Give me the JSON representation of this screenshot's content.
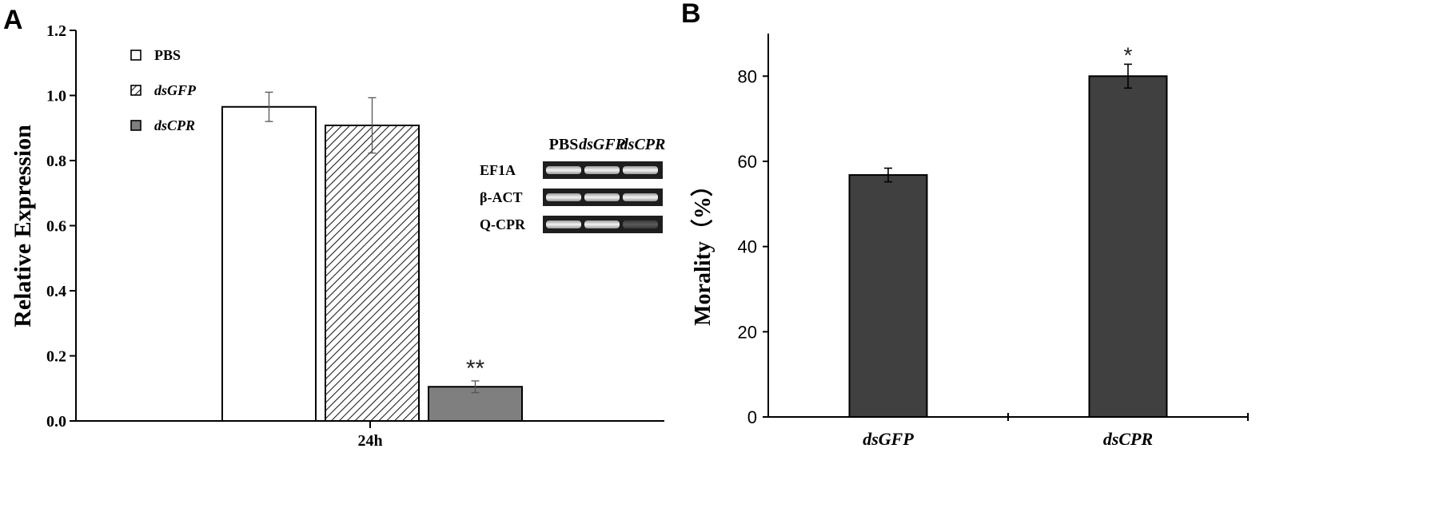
{
  "panels": [
    {
      "letter": "A",
      "chart_data": {
        "type": "bar",
        "xlabel": "24h",
        "ylabel": "Relative Expression",
        "ylim": [
          0,
          1.2
        ],
        "yticks": [
          "0.0",
          "0.2",
          "0.4",
          "0.6",
          "0.8",
          "1.0",
          "1.2"
        ],
        "yticks_values": [
          0,
          0.2,
          0.4,
          0.6,
          0.8,
          1.0,
          1.2
        ],
        "grid": false,
        "legend_position": "top-left",
        "series": [
          {
            "name": "PBS",
            "values": [
              0.965
            ],
            "error": [
              0.045
            ],
            "fill": "#ffffff",
            "pattern": "none",
            "significance": ""
          },
          {
            "name": "dsGFP",
            "values": [
              0.908
            ],
            "error": [
              0.085
            ],
            "fill": "#ffffff",
            "pattern": "hatch",
            "significance": ""
          },
          {
            "name": "dsCPR",
            "values": [
              0.105
            ],
            "error": [
              0.018
            ],
            "fill": "#7f7f7f",
            "pattern": "none",
            "significance": "**"
          }
        ]
      },
      "gel_inset": {
        "lanes": [
          "PBS",
          "dsGFP",
          "dsCPR"
        ],
        "rows": [
          {
            "label": "EF1A",
            "band_intensity": [
              1.0,
              1.0,
              1.0
            ]
          },
          {
            "label": "β-ACT",
            "band_intensity": [
              1.0,
              1.0,
              1.0
            ]
          },
          {
            "label": "Q-CPR",
            "band_intensity": [
              1.0,
              1.0,
              0.15
            ]
          }
        ]
      }
    },
    {
      "letter": "B",
      "chart_data": {
        "type": "bar",
        "categories": [
          "dsGFP",
          "dsCPR"
        ],
        "values": [
          56.8,
          80.0
        ],
        "error": [
          1.6,
          2.8
        ],
        "significance": [
          "",
          "*"
        ],
        "ylabel": "Morality（%）",
        "xlabel": "",
        "ylim": [
          0,
          90
        ],
        "yticks": [
          "0",
          "20",
          "40",
          "60",
          "80"
        ],
        "yticks_values": [
          0,
          20,
          40,
          60,
          80
        ],
        "grid": false,
        "bar_color": "#404040"
      }
    }
  ]
}
